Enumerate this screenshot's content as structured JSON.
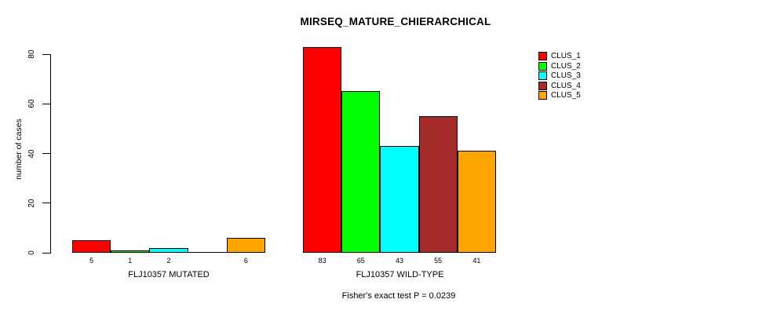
{
  "title": "MIRSEQ_MATURE_CHIERARCHICAL",
  "subtitle": "Fisher's exact test P = 0.0239",
  "chart_data": {
    "type": "bar",
    "title": "MIRSEQ_MATURE_CHIERARCHICAL",
    "subtitle": "Fisher's exact test P = 0.0239",
    "ylabel": "number of cases",
    "xlabel": "",
    "categories": [
      "FLJ10357 MUTATED",
      "FLJ10357 WILD-TYPE"
    ],
    "series": [
      {
        "name": "CLUS_1",
        "color": "#ff0000",
        "values": [
          5,
          83
        ]
      },
      {
        "name": "CLUS_2",
        "color": "#00ff00",
        "values": [
          1,
          65
        ]
      },
      {
        "name": "CLUS_3",
        "color": "#00ffff",
        "values": [
          2,
          43
        ]
      },
      {
        "name": "CLUS_4",
        "color": "#a52a2a",
        "values": [
          0,
          55
        ]
      },
      {
        "name": "CLUS_5",
        "color": "#ffa500",
        "values": [
          6,
          41
        ]
      }
    ],
    "bar_value_labels": [
      [
        "5",
        "1",
        "2",
        "",
        "6"
      ],
      [
        "83",
        "65",
        "43",
        "55",
        "41"
      ]
    ],
    "y_ticks": [
      0,
      20,
      40,
      60,
      80
    ],
    "ylim": [
      0,
      85
    ],
    "grid": false,
    "legend_position": "top-right",
    "legend": [
      "CLUS_1",
      "CLUS_2",
      "CLUS_3",
      "CLUS_4",
      "CLUS_5"
    ]
  }
}
